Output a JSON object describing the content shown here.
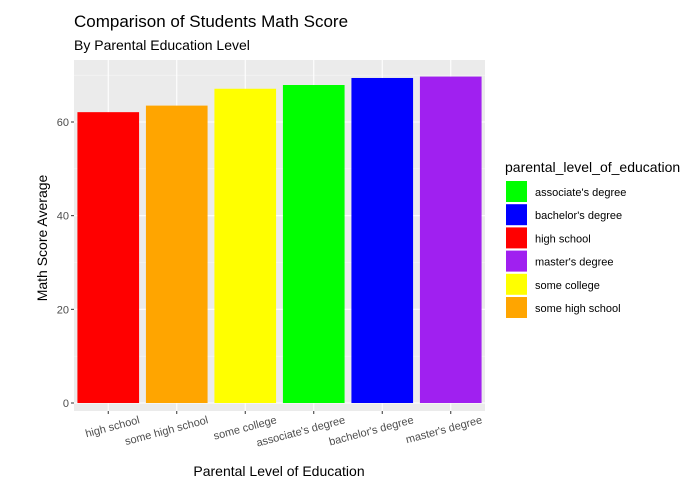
{
  "chart_data": {
    "type": "bar",
    "title": "Comparison of Students Math Score",
    "subtitle": "By Parental Education Level",
    "xlabel": "Parental Level of Education",
    "ylabel": "Math Score Average",
    "categories": [
      "high school",
      "some high school",
      "some college",
      "associate's degree",
      "bachelor's degree",
      "master's degree"
    ],
    "values": [
      62.1,
      63.5,
      67.1,
      67.9,
      69.4,
      69.7
    ],
    "colors": [
      "#ff0000",
      "#ffa500",
      "#ffff00",
      "#00ff00",
      "#0000ff",
      "#a020f0"
    ],
    "ylim": [
      0,
      72
    ],
    "yticks": [
      0,
      20,
      40,
      60
    ],
    "ytick_labels": [
      "0",
      "20",
      "40",
      "60"
    ],
    "grid": true,
    "legend": {
      "title": "parental_level_of_education",
      "placement": "right",
      "items": [
        {
          "label": "associate's degree",
          "color": "#00ff00"
        },
        {
          "label": "bachelor's degree",
          "color": "#0000ff"
        },
        {
          "label": "high school",
          "color": "#ff0000"
        },
        {
          "label": "master's degree",
          "color": "#a020f0"
        },
        {
          "label": "some college",
          "color": "#ffff00"
        },
        {
          "label": "some high school",
          "color": "#ffa500"
        }
      ]
    }
  }
}
